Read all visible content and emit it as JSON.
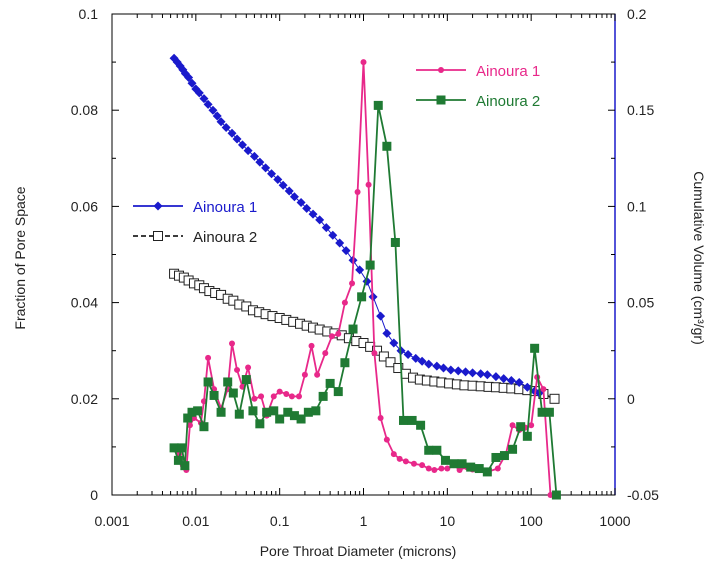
{
  "chart_data": {
    "type": "line",
    "title": "",
    "xlabel": "Pore Throat Diameter (microns)",
    "ylabel_left": "Fraction of Pore Space",
    "ylabel_right": "Cumulative Volume (cm³/gr)",
    "x_scale": "log",
    "xlim": [
      0.001,
      1000
    ],
    "ylim_left": [
      0,
      0.1
    ],
    "ylim_right": [
      -0.05,
      0.2
    ],
    "x_ticks": [
      0.001,
      0.01,
      0.1,
      1,
      10,
      100,
      1000
    ],
    "x_tick_labels": [
      "0.001",
      "0.01",
      "0.1",
      "1",
      "10",
      "100",
      "1000"
    ],
    "y_left_ticks": [
      0,
      0.02,
      0.04,
      0.06,
      0.08,
      0.1
    ],
    "y_left_tick_labels": [
      "0",
      "0.02",
      "0.04",
      "0.06",
      "0.08",
      "0.1"
    ],
    "y_right_ticks": [
      -0.05,
      0,
      0.05,
      0.1,
      0.15,
      0.2
    ],
    "y_right_tick_labels": [
      "-0.05",
      "0",
      "0.05",
      "0.1",
      "0.15",
      "0.2"
    ],
    "grid": false,
    "legend_placement": [
      "top-right",
      "middle-left"
    ],
    "series": [
      {
        "name": "Ainoura 1",
        "axis": "left",
        "color": "#e8288a",
        "marker": "circle",
        "x": [
          0.0056,
          0.0063,
          0.007,
          0.0077,
          0.0085,
          0.0095,
          0.0115,
          0.0125,
          0.014,
          0.0165,
          0.02,
          0.024,
          0.027,
          0.031,
          0.036,
          0.042,
          0.05,
          0.06,
          0.07,
          0.085,
          0.1,
          0.12,
          0.14,
          0.17,
          0.2,
          0.24,
          0.28,
          0.35,
          0.42,
          0.5,
          0.6,
          0.73,
          0.85,
          1.0,
          1.15,
          1.35,
          1.6,
          1.9,
          2.3,
          2.7,
          3.2,
          4,
          5,
          6,
          7,
          8.5,
          10,
          12,
          14,
          17,
          20,
          25,
          30,
          40,
          50,
          60,
          72,
          85,
          100,
          118,
          140,
          170,
          200
        ],
        "y": [
          0.0095,
          0.0085,
          0.0062,
          0.0052,
          0.0145,
          0.016,
          0.015,
          0.0195,
          0.0285,
          0.022,
          0.018,
          0.022,
          0.0315,
          0.026,
          0.0225,
          0.0265,
          0.02,
          0.0205,
          0.0165,
          0.0205,
          0.0215,
          0.021,
          0.0205,
          0.0205,
          0.025,
          0.031,
          0.025,
          0.0295,
          0.033,
          0.0335,
          0.04,
          0.044,
          0.063,
          0.09,
          0.0645,
          0.0295,
          0.016,
          0.0115,
          0.0085,
          0.0075,
          0.007,
          0.0065,
          0.0062,
          0.0055,
          0.0052,
          0.0055,
          0.0055,
          0.0062,
          0.0052,
          0.0058,
          0.0053,
          0.0052,
          0.0048,
          0.0055,
          0.0085,
          0.0145,
          0.0135,
          0.014,
          0.0145,
          0.0245,
          0.022,
          0.0,
          0.0
        ]
      },
      {
        "name": "Ainoura 2",
        "axis": "left",
        "color": "#1f7a33",
        "marker": "square",
        "x": [
          0.0055,
          0.0062,
          0.0068,
          0.0074,
          0.008,
          0.009,
          0.0105,
          0.0125,
          0.014,
          0.0165,
          0.02,
          0.024,
          0.028,
          0.033,
          0.04,
          0.048,
          0.058,
          0.07,
          0.085,
          0.1,
          0.125,
          0.15,
          0.18,
          0.22,
          0.27,
          0.33,
          0.4,
          0.5,
          0.6,
          0.75,
          0.95,
          1.2,
          1.5,
          1.9,
          2.4,
          3.0,
          3.8,
          4.8,
          6,
          7.5,
          9.5,
          12,
          15,
          19,
          24,
          30,
          38,
          48,
          60,
          75,
          90,
          110,
          135,
          165,
          200
        ],
        "y": [
          0.0098,
          0.0072,
          0.0098,
          0.0061,
          0.016,
          0.0172,
          0.0175,
          0.0142,
          0.0235,
          0.0207,
          0.0172,
          0.0235,
          0.0212,
          0.0168,
          0.024,
          0.0175,
          0.0148,
          0.0172,
          0.0175,
          0.0158,
          0.0172,
          0.0165,
          0.0158,
          0.0172,
          0.0175,
          0.0205,
          0.0232,
          0.0215,
          0.0275,
          0.0345,
          0.0412,
          0.0478,
          0.081,
          0.0725,
          0.0525,
          0.0155,
          0.0155,
          0.0145,
          0.0093,
          0.0093,
          0.0072,
          0.0065,
          0.0065,
          0.0058,
          0.0055,
          0.0048,
          0.0078,
          0.0082,
          0.0095,
          0.0142,
          0.0122,
          0.0305,
          0.0172,
          0.0172,
          0.0
        ]
      },
      {
        "name": "Ainoura 1",
        "axis": "right",
        "color": "#1a1acc",
        "marker": "diamond",
        "x": [
          0.0055,
          0.006,
          0.0065,
          0.007,
          0.0075,
          0.0082,
          0.009,
          0.01,
          0.011,
          0.0125,
          0.014,
          0.016,
          0.018,
          0.02,
          0.023,
          0.027,
          0.031,
          0.036,
          0.042,
          0.05,
          0.058,
          0.068,
          0.08,
          0.095,
          0.11,
          0.13,
          0.15,
          0.18,
          0.21,
          0.25,
          0.3,
          0.36,
          0.43,
          0.52,
          0.62,
          0.75,
          0.9,
          1.1,
          1.3,
          1.6,
          1.9,
          2.3,
          2.8,
          3.4,
          4.2,
          5,
          6,
          7.5,
          9,
          11,
          13.5,
          16.5,
          20,
          25,
          30,
          38,
          47,
          58,
          72,
          90,
          110,
          125
        ],
        "y": [
          0.177,
          0.175,
          0.173,
          0.171,
          0.169,
          0.167,
          0.164,
          0.161,
          0.159,
          0.156,
          0.153,
          0.15,
          0.147,
          0.144,
          0.141,
          0.138,
          0.135,
          0.132,
          0.129,
          0.126,
          0.123,
          0.12,
          0.117,
          0.114,
          0.111,
          0.108,
          0.105,
          0.102,
          0.099,
          0.096,
          0.093,
          0.089,
          0.085,
          0.081,
          0.077,
          0.072,
          0.067,
          0.061,
          0.053,
          0.043,
          0.034,
          0.029,
          0.025,
          0.023,
          0.021,
          0.0195,
          0.018,
          0.017,
          0.016,
          0.015,
          0.0145,
          0.014,
          0.0135,
          0.013,
          0.0125,
          0.0115,
          0.0105,
          0.0095,
          0.0085,
          0.006,
          0.004,
          0.003
        ]
      },
      {
        "name": "Ainoura 2",
        "axis": "right",
        "color": "#222222",
        "marker": "open-square",
        "x": [
          0.0055,
          0.0063,
          0.0072,
          0.0082,
          0.0095,
          0.011,
          0.0125,
          0.0145,
          0.017,
          0.02,
          0.024,
          0.028,
          0.033,
          0.04,
          0.048,
          0.057,
          0.068,
          0.082,
          0.1,
          0.12,
          0.145,
          0.175,
          0.21,
          0.25,
          0.3,
          0.37,
          0.45,
          0.55,
          0.67,
          0.82,
          1.0,
          1.2,
          1.45,
          1.75,
          2.1,
          2.6,
          3.2,
          3.9,
          4.7,
          5.7,
          7,
          8.5,
          10.5,
          13,
          16,
          20,
          25,
          31,
          38,
          47,
          58,
          72,
          90,
          110,
          140,
          190
        ],
        "y": [
          0.065,
          0.064,
          0.063,
          0.0615,
          0.06,
          0.059,
          0.0575,
          0.056,
          0.055,
          0.054,
          0.052,
          0.051,
          0.049,
          0.048,
          0.046,
          0.045,
          0.044,
          0.043,
          0.042,
          0.041,
          0.04,
          0.039,
          0.038,
          0.037,
          0.036,
          0.035,
          0.034,
          0.033,
          0.0315,
          0.03,
          0.029,
          0.027,
          0.025,
          0.022,
          0.019,
          0.016,
          0.013,
          0.011,
          0.01,
          0.0095,
          0.009,
          0.0085,
          0.008,
          0.0075,
          0.007,
          0.0068,
          0.0065,
          0.0062,
          0.006,
          0.0057,
          0.0054,
          0.005,
          0.0045,
          0.004,
          0.0025,
          0.0
        ]
      }
    ],
    "legend": [
      {
        "label": "Ainoura 1",
        "series_index": 0
      },
      {
        "label": "Ainoura 2",
        "series_index": 1
      },
      {
        "label": "Ainoura 1",
        "series_index": 2
      },
      {
        "label": "Ainoura 2",
        "series_index": 3
      }
    ]
  }
}
